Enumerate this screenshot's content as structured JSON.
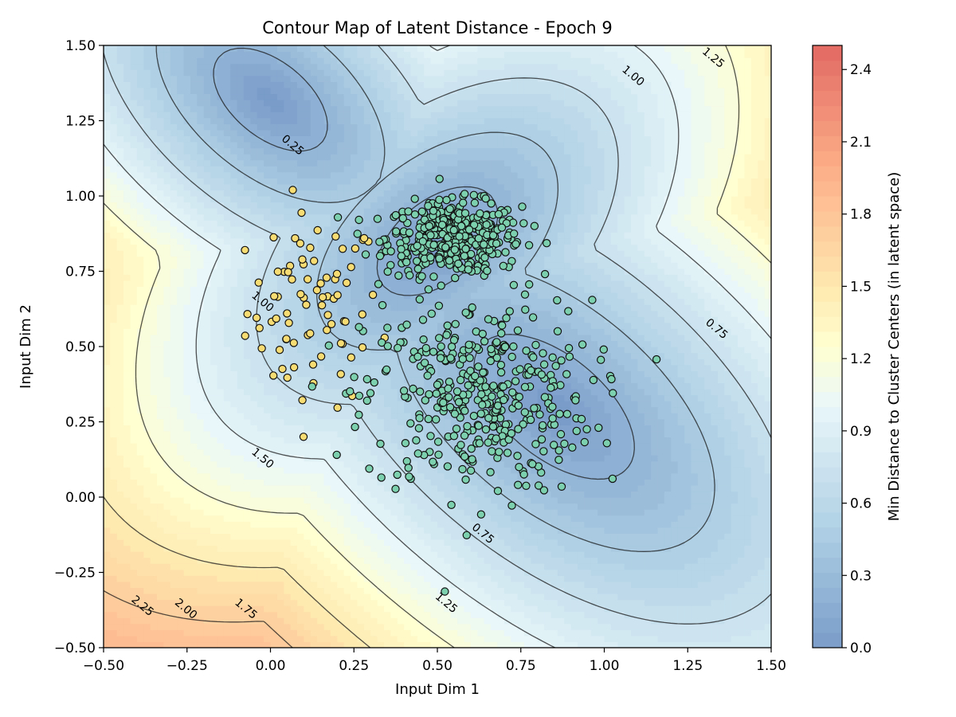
{
  "chart_data": {
    "type": "contour",
    "title": "Contour Map of Latent Distance - Epoch 9",
    "xlabel": "Input Dim 1",
    "ylabel": "Input Dim 2",
    "xlim": [
      -0.5,
      1.5
    ],
    "ylim": [
      -0.5,
      1.5
    ],
    "x_ticks": [
      -0.5,
      -0.25,
      0.0,
      0.25,
      0.5,
      0.75,
      1.0,
      1.25,
      1.5
    ],
    "y_ticks": [
      -0.5,
      -0.25,
      0.0,
      0.25,
      0.5,
      0.75,
      1.0,
      1.25,
      1.5
    ],
    "x_tick_labels": [
      "−0.50",
      "−0.25",
      "0.00",
      "0.25",
      "0.50",
      "0.75",
      "1.00",
      "1.25",
      "1.50"
    ],
    "y_tick_labels": [
      "−0.50",
      "−0.25",
      "0.00",
      "0.25",
      "0.50",
      "0.75",
      "1.00",
      "1.25",
      "1.50"
    ],
    "colormap": "RdYlBu_r",
    "colorbar": {
      "label": "Min Distance to Cluster Centers (in latent space)",
      "range": [
        0.0,
        2.5
      ],
      "ticks": [
        0.0,
        0.3,
        0.6,
        0.9,
        1.2,
        1.5,
        1.8,
        2.1,
        2.4
      ],
      "tick_labels": [
        "0.0",
        "0.3",
        "0.6",
        "0.9",
        "1.2",
        "1.5",
        "1.8",
        "2.1",
        "2.4"
      ]
    },
    "contour_levels": [
      0.25,
      0.5,
      0.75,
      1.0,
      1.25,
      1.5,
      1.75,
      2.0,
      2.25
    ],
    "contour_labels": [
      {
        "text": "0.25",
        "x": 0.06,
        "y": 1.16
      },
      {
        "text": "1.00",
        "x": -0.03,
        "y": 0.64
      },
      {
        "text": "1.50",
        "x": -0.03,
        "y": 0.12
      },
      {
        "text": "2.25",
        "x": -0.39,
        "y": -0.37
      },
      {
        "text": "2.00",
        "x": -0.26,
        "y": -0.38
      },
      {
        "text": "1.75",
        "x": -0.08,
        "y": -0.38
      },
      {
        "text": "1.25",
        "x": 0.52,
        "y": -0.36
      },
      {
        "text": "0.75",
        "x": 0.63,
        "y": -0.13
      },
      {
        "text": "0.75",
        "x": 1.33,
        "y": 0.55
      },
      {
        "text": "1.00",
        "x": 1.08,
        "y": 1.39
      },
      {
        "text": "1.25",
        "x": 1.32,
        "y": 1.45
      }
    ],
    "distance_field": {
      "clusters": [
        {
          "center": [
            0.0,
            1.32
          ],
          "spread": [
            0.12,
            0.21
          ]
        },
        {
          "center": [
            0.5,
            0.85
          ],
          "spread": [
            0.22,
            0.13
          ]
        },
        {
          "center": [
            0.85,
            0.3
          ],
          "spread": [
            0.16,
            0.3
          ]
        }
      ]
    },
    "scatter": {
      "series": [
        {
          "color": "#f6dc72",
          "count": 80,
          "center": [
            0.13,
            0.62
          ],
          "spread": [
            0.1,
            0.16
          ]
        },
        {
          "color": "#7cd0ae",
          "count": 430,
          "center": [
            0.55,
            0.86
          ],
          "spread": [
            0.1,
            0.06
          ]
        },
        {
          "color": "#7cd0ae",
          "count": 380,
          "center": [
            0.62,
            0.33
          ],
          "spread": [
            0.17,
            0.16
          ]
        }
      ],
      "edge_color": "#111111"
    }
  }
}
